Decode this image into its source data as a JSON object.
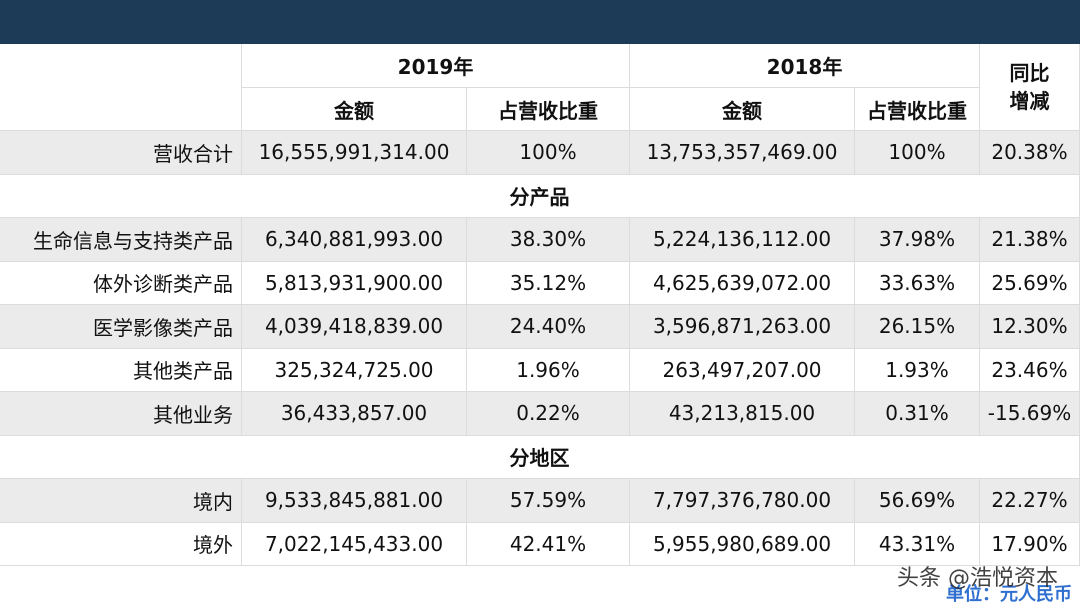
{
  "table": {
    "years": [
      "2019年",
      "2018年"
    ],
    "yoy": "同比增减",
    "sub_headers": [
      "金额",
      "占营收比重",
      "金额",
      "占营收比重"
    ],
    "rows": [
      [
        "营收合计",
        "16,555,991,314.00",
        "100%",
        "13,753,357,469.00",
        "100%",
        "20.38%"
      ],
      {
        "section": "分产品"
      },
      [
        "生命信息与支持类产品",
        "6,340,881,993.00",
        "38.30%",
        "5,224,136,112.00",
        "37.98%",
        "21.38%"
      ],
      [
        "体外诊断类产品",
        "5,813,931,900.00",
        "35.12%",
        "4,625,639,072.00",
        "33.63%",
        "25.69%"
      ],
      [
        "医学影像类产品",
        "4,039,418,839.00",
        "24.40%",
        "3,596,871,263.00",
        "26.15%",
        "12.30%"
      ],
      [
        "其他类产品",
        "325,324,725.00",
        "1.96%",
        "263,497,207.00",
        "1.93%",
        "23.46%"
      ],
      [
        "其他业务",
        "36,433,857.00",
        "0.22%",
        "43,213,815.00",
        "0.31%",
        "-15.69%"
      ],
      {
        "section": "分地区"
      },
      [
        "境内",
        "9,533,845,881.00",
        "57.59%",
        "7,797,376,780.00",
        "56.69%",
        "22.27%"
      ],
      [
        "境外",
        "7,022,145,433.00",
        "42.41%",
        "5,955,980,689.00",
        "43.31%",
        "17.90%"
      ]
    ]
  },
  "footer": {
    "unit": "单位：元人民币",
    "watermark": "头条 @浩悦资本"
  }
}
